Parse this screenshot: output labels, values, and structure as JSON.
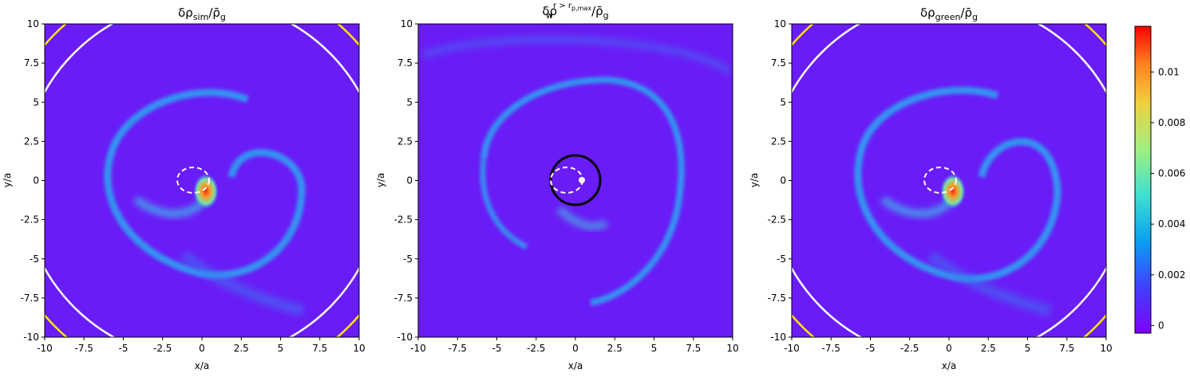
{
  "chart_data": [
    {
      "type": "heatmap",
      "panel": "left",
      "title_parts": {
        "base": "δρ",
        "sub": "sim",
        "tail": "/ρ̄",
        "tail_sub": "g"
      },
      "xlabel": "x/a",
      "ylabel": "y/a",
      "xlim": [
        -10,
        10
      ],
      "ylim": [
        -10,
        10
      ],
      "x_ticks": [
        -10,
        -7.5,
        -5,
        -2.5,
        0,
        2.5,
        5,
        7.5,
        10
      ],
      "y_ticks": [
        -10,
        -7.5,
        -5,
        -2.5,
        0,
        2.5,
        5,
        7.5,
        10
      ],
      "x_tick_labels": [
        "-10",
        "-7.5",
        "-5",
        "-2.5",
        "0",
        "2.5",
        "5",
        "7.5",
        "10"
      ],
      "y_tick_labels": [
        "-10",
        "-7.5",
        "-5",
        "-2.5",
        "0",
        "2.5",
        "5",
        "7.5",
        "10"
      ],
      "circles": [
        {
          "kind": "white-solid",
          "cx": 0,
          "cy": 0,
          "r": 11.5
        },
        {
          "kind": "yellow-solid",
          "cx": 0,
          "cy": 0,
          "r": 13.2
        }
      ],
      "dashed_ellipse": {
        "cx": -0.55,
        "cy": 0,
        "rx": 1.0,
        "ry": 0.8
      },
      "hotspot": {
        "x": 0.4,
        "y": -0.3
      }
    },
    {
      "type": "heatmap",
      "panel": "middle",
      "title_parts": {
        "base": "δρ",
        "sub": "w",
        "sup": "r > r",
        "sup_sub": "p,max",
        "tail": "/ρ̄",
        "tail_sub": "g"
      },
      "xlabel": "x/a",
      "ylabel": "y/a",
      "xlim": [
        -10,
        10
      ],
      "ylim": [
        -10,
        10
      ],
      "x_ticks": [
        -10,
        -7.5,
        -5,
        -2.5,
        0,
        2.5,
        5,
        7.5,
        10
      ],
      "y_ticks": [
        -10,
        -7.5,
        -5,
        -2.5,
        0,
        2.5,
        5,
        7.5,
        10
      ],
      "x_tick_labels": [
        "-10",
        "-7.5",
        "-5",
        "-2.5",
        "0",
        "2.5",
        "5",
        "7.5",
        "10"
      ],
      "y_tick_labels": [
        "-10",
        "-7.5",
        "-5",
        "-2.5",
        "0",
        "2.5",
        "5",
        "7.5",
        "10"
      ],
      "circles": [
        {
          "kind": "black-solid",
          "cx": 0,
          "cy": 0,
          "r": 1.6
        }
      ],
      "dashed_ellipse": {
        "cx": -0.55,
        "cy": 0,
        "rx": 1.0,
        "ry": 0.8
      },
      "planet_dot": {
        "x": 0.2,
        "y": 0
      }
    },
    {
      "type": "heatmap",
      "panel": "right",
      "title_parts": {
        "base": "δρ",
        "sub": "green",
        "tail": "/ρ̄",
        "tail_sub": "g"
      },
      "xlabel": "x/a",
      "ylabel": "y/a",
      "xlim": [
        -10,
        10
      ],
      "ylim": [
        -10,
        10
      ],
      "x_ticks": [
        -10,
        -7.5,
        -5,
        -2.5,
        0,
        2.5,
        5,
        7.5,
        10
      ],
      "y_ticks": [
        -10,
        -7.5,
        -5,
        -2.5,
        0,
        2.5,
        5,
        7.5,
        10
      ],
      "x_tick_labels": [
        "-10",
        "-7.5",
        "-5",
        "-2.5",
        "0",
        "2.5",
        "5",
        "7.5",
        "10"
      ],
      "y_tick_labels": [
        "-10",
        "-7.5",
        "-5",
        "-2.5",
        "0",
        "2.5",
        "5",
        "7.5",
        "10"
      ],
      "circles": [
        {
          "kind": "white-solid",
          "cx": 0,
          "cy": 0,
          "r": 11.5
        },
        {
          "kind": "yellow-solid",
          "cx": 0,
          "cy": 0,
          "r": 13.2
        }
      ],
      "dashed_ellipse": {
        "cx": -0.55,
        "cy": 0,
        "rx": 1.0,
        "ry": 0.8
      },
      "hotspot": {
        "x": 0.4,
        "y": -0.3
      }
    }
  ],
  "colorbar": {
    "colormap": "rainbow",
    "range": [
      -0.0003,
      0.0118
    ],
    "ticks": [
      0,
      0.002,
      0.004,
      0.006,
      0.008,
      0.01
    ],
    "tick_labels": [
      "0",
      "0.002",
      "0.004",
      "0.006",
      "0.008",
      "0.01"
    ]
  },
  "colors": {
    "background_field": "#6a1cf6",
    "wave": "#2aa8f0",
    "hot": "#ff2a10",
    "warm": "#e8e040",
    "white_circle": "#ffffff",
    "yellow_circle": "#ffe600",
    "black_circle": "#000000"
  }
}
